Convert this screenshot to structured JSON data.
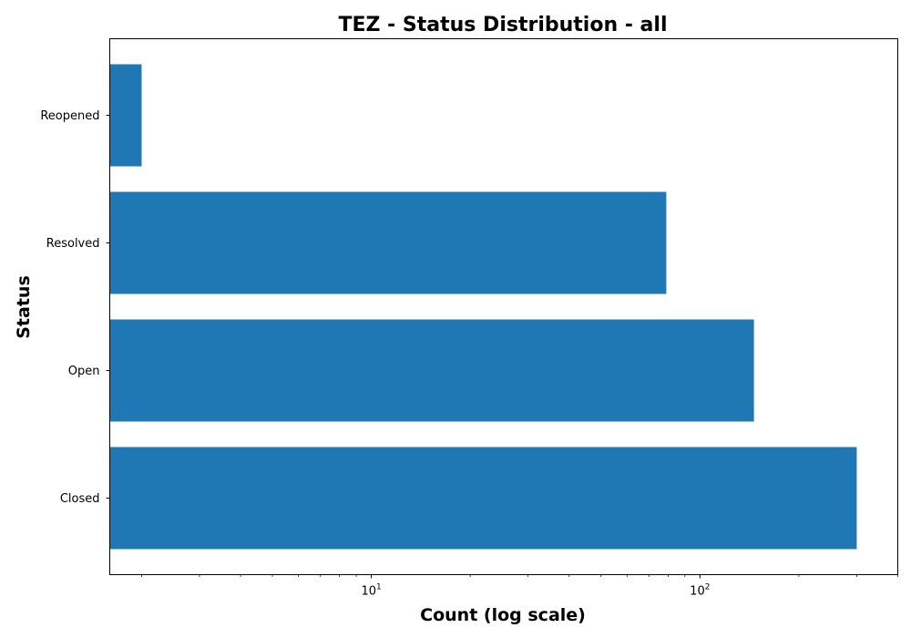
{
  "chart_data": {
    "type": "bar",
    "orientation": "horizontal",
    "title": "TEZ - Status Distribution - all",
    "xlabel": "Count (log scale)",
    "ylabel": "Status",
    "x_scale": "log",
    "xlim": [
      1.6,
      400
    ],
    "x_major_ticks": [
      {
        "base": "10",
        "exp": "1",
        "value": 10
      },
      {
        "base": "10",
        "exp": "2",
        "value": 100
      }
    ],
    "categories": [
      "Closed",
      "Open",
      "Resolved",
      "Reopened"
    ],
    "values": [
      300,
      146,
      79,
      2
    ],
    "bar_color": "#1f77b4",
    "grid": false,
    "legend": "none"
  }
}
